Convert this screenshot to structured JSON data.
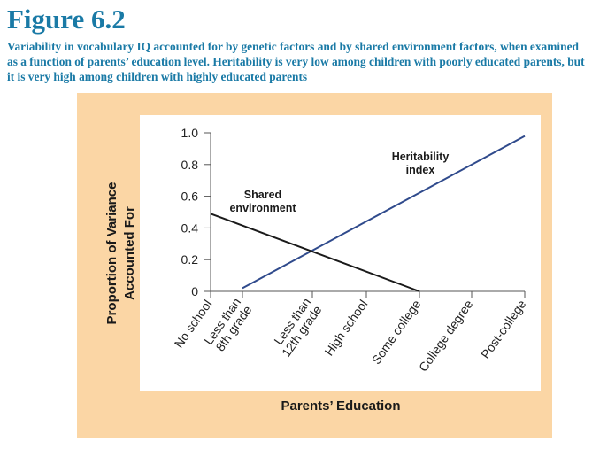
{
  "figure": {
    "title": "Figure 6.2",
    "caption": "Variability in vocabulary IQ accounted for by genetic factors and by shared environment factors, when examined as a function of parents’ education level. Heritability is very low among children with poorly educated parents, but it is very high among children with highly educated parents"
  },
  "colors": {
    "title": "#1a7aa6",
    "panel": "#fbd6a5",
    "plot_bg": "#ffffff",
    "heritability": "#2f4a8c",
    "shared_environment": "#1a1a1a"
  },
  "chart_data": {
    "type": "line",
    "title": "",
    "xlabel": "Parents’ Education",
    "ylabel": [
      "Proportion of Variance",
      "Accounted For"
    ],
    "categories": [
      "No school",
      "Less than 8th grade",
      "Less than 12th grade",
      "High school",
      "Some college",
      "College degree",
      "Post-college"
    ],
    "category_labels": [
      [
        "No school"
      ],
      [
        "Less than",
        "8th grade"
      ],
      [
        "Less than",
        "12th grade"
      ],
      [
        "High school"
      ],
      [
        "Some college"
      ],
      [
        "College degree"
      ],
      [
        "Post-college"
      ]
    ],
    "ylim": [
      0,
      1.0
    ],
    "yticks": [
      0,
      0.2,
      0.4,
      0.6,
      0.8,
      1.0
    ],
    "ytick_labels": [
      "0",
      "0.2",
      "0.4",
      "0.6",
      "0.8",
      "1.0"
    ],
    "grid": false,
    "series": [
      {
        "name": "Heritability index",
        "label_lines": [
          "Heritability",
          "index"
        ],
        "color_key": "heritability",
        "points": [
          {
            "x": 1,
            "y": 0.02
          },
          {
            "x": 6,
            "y": 0.98
          }
        ]
      },
      {
        "name": "Shared environment",
        "label_lines": [
          "Shared",
          "environment"
        ],
        "color_key": "shared_environment",
        "points": [
          {
            "x": 0,
            "y": 0.49
          },
          {
            "x": 4,
            "y": 0.0
          }
        ]
      }
    ]
  }
}
